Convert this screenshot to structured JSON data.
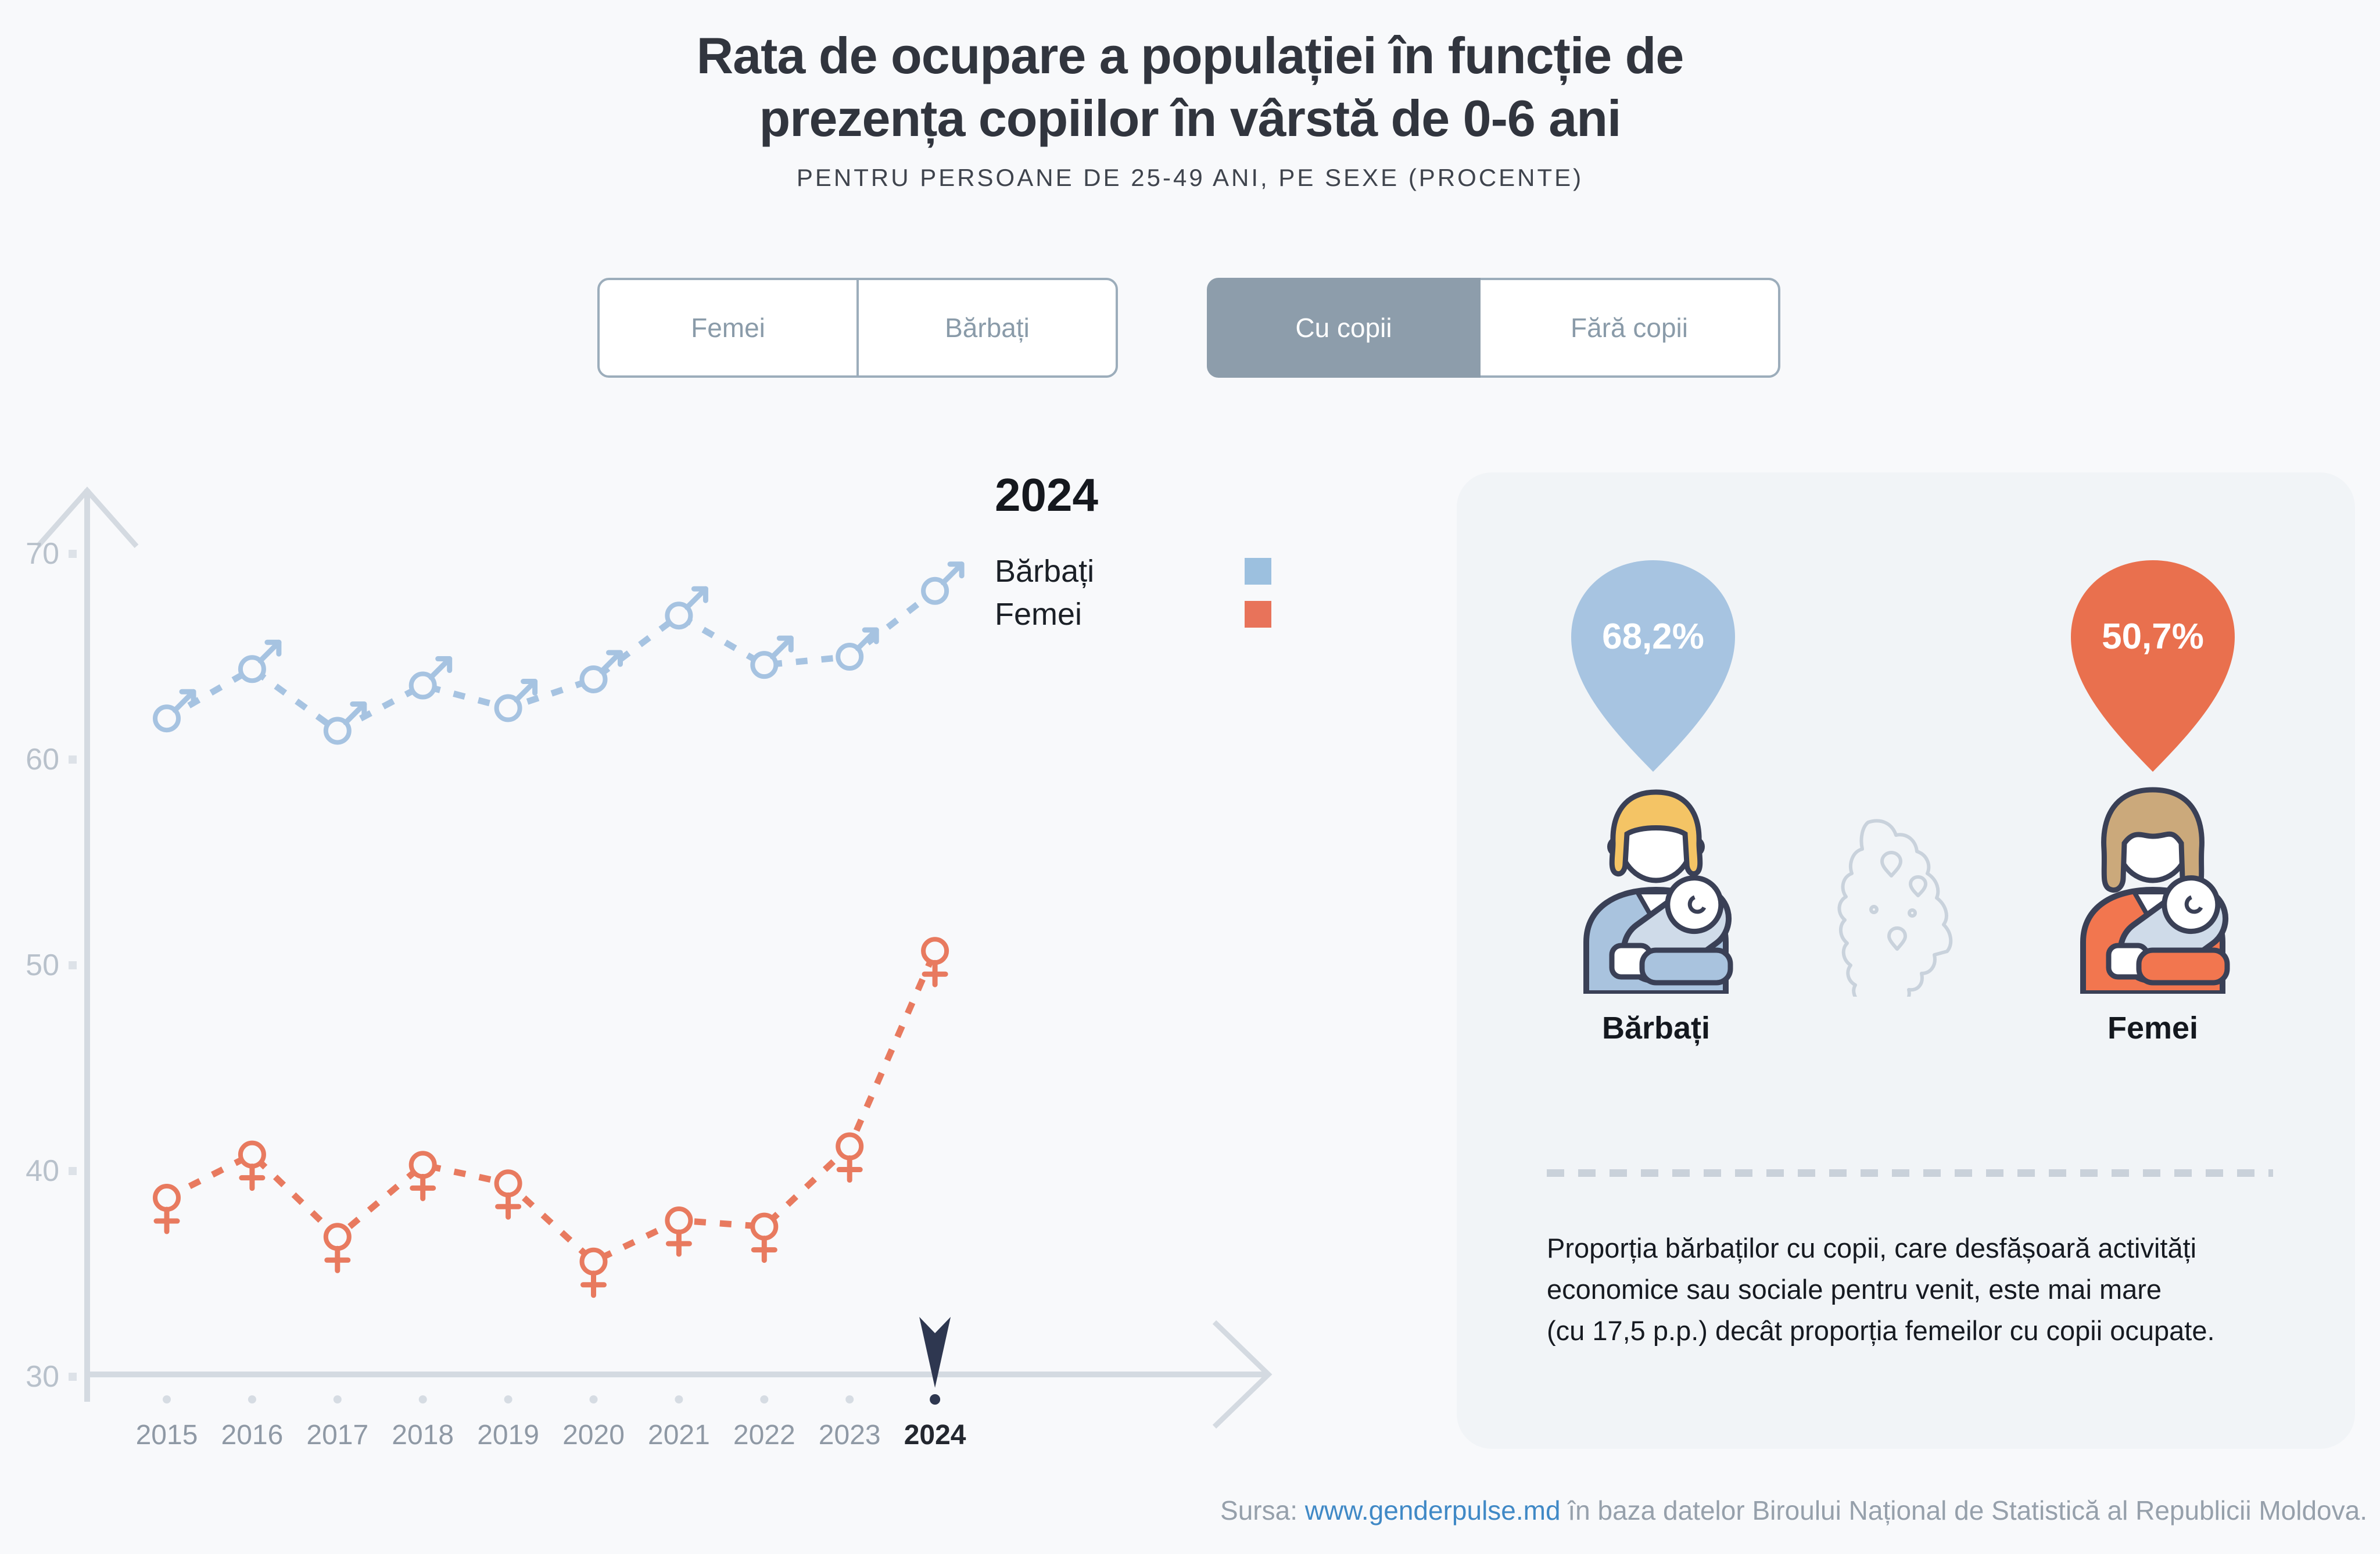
{
  "title": {
    "line1": "Rata de ocupare a populației în funcție de",
    "line2": "prezența copiilor în vârstă de 0-6 ani"
  },
  "subtitle": "PENTRU PERSOANE DE 25-49 ANI, PE SEXE (PROCENTE)",
  "toggles": {
    "sex": {
      "options": [
        "Femei",
        "Bărbați"
      ],
      "selected": null
    },
    "children": {
      "options": [
        "Cu copii",
        "Fără copii"
      ],
      "selected": "Cu copii"
    }
  },
  "legend": {
    "year": "2024",
    "items": [
      {
        "label": "Bărbați",
        "color": "#9cc0df"
      },
      {
        "label": "Femei",
        "color": "#e8735a"
      }
    ]
  },
  "chart_data": {
    "type": "line",
    "x": [
      2015,
      2016,
      2017,
      2018,
      2019,
      2020,
      2021,
      2022,
      2023,
      2024
    ],
    "series": [
      {
        "name": "Bărbați",
        "marker": "male",
        "color": "#a6c3e1",
        "values": [
          62.0,
          64.4,
          61.4,
          63.6,
          62.5,
          63.9,
          67.0,
          64.6,
          65.0,
          68.2
        ]
      },
      {
        "name": "Femei",
        "marker": "female",
        "color": "#e87a5f",
        "values": [
          38.7,
          40.8,
          36.8,
          40.3,
          39.4,
          35.6,
          37.6,
          37.3,
          41.2,
          50.7
        ]
      }
    ],
    "yticks": [
      30,
      40,
      50,
      60,
      70
    ],
    "ylim": [
      28,
      73
    ],
    "grid": false,
    "line_style": "dashed",
    "legend_position": "top-right",
    "highlight_x": 2024,
    "title": "Rata de ocupare a populației în funcție de prezența copiilor în vârstă de 0-6 ani",
    "xlabel": "",
    "ylabel": ""
  },
  "panel": {
    "male": {
      "value": "68,2%",
      "label": "Bărbați",
      "pin_color": "#a7c4e1"
    },
    "female": {
      "value": "50,7%",
      "label": "Femei",
      "pin_color": "#e9704e"
    },
    "note_lines": [
      "Proporția bărbaților cu copii, care desfășoară activități",
      "economice sau sociale pentru venit, este mai mare",
      "(cu 17,5 p.p.) decât proporția femeilor cu copii ocupate."
    ]
  },
  "footer": {
    "prefix": "Sursa: ",
    "link": "www.genderpulse.md",
    "suffix": " în baza datelor Biroului Național de Statistică al Republicii Moldova."
  }
}
